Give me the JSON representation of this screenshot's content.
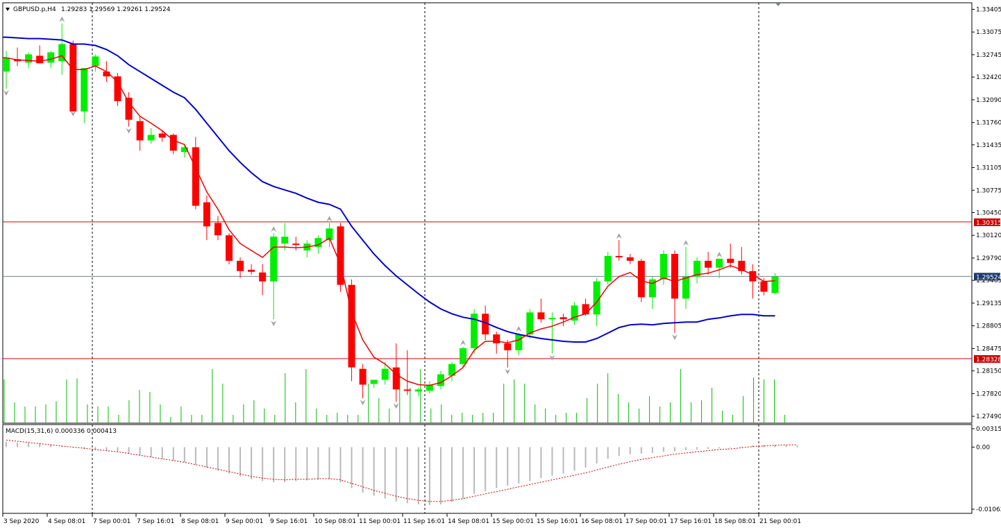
{
  "chart_data": [
    {
      "type": "candlestick",
      "title": "GBPUSD.p,H4",
      "ohlc_header": "1.29283 1.29569 1.29261 1.29524",
      "ylim": [
        1.2739,
        1.335
      ],
      "colors": {
        "up": "#00ee00",
        "down": "#ff0000",
        "ma_fast": "#ee0000",
        "ma_slow": "#0000cc",
        "level": "#cc0000",
        "grid": "#000000",
        "volume": "#00bb00"
      },
      "price_ticks": [
        "1.33405",
        "1.33075",
        "1.32745",
        "1.32420",
        "1.32090",
        "1.31760",
        "1.31435",
        "1.31105",
        "1.30775",
        "1.30450",
        "1.30120",
        "1.29790",
        "1.29465",
        "1.29135",
        "1.28805",
        "1.28475",
        "1.28150",
        "1.27820",
        "1.27490"
      ],
      "price_tick_values": [
        1.33405,
        1.33075,
        1.32745,
        1.3242,
        1.3209,
        1.3176,
        1.31435,
        1.31105,
        1.30775,
        1.3045,
        1.3012,
        1.2979,
        1.29465,
        1.29135,
        1.28805,
        1.28475,
        1.2815,
        1.2782,
        1.2749
      ],
      "current_price": {
        "label": "1.29524",
        "value": 1.29524
      },
      "levels": [
        {
          "label": "1.30315",
          "value": 1.30315
        },
        {
          "label": "1.28328",
          "value": 1.28328
        }
      ],
      "time_labels": [
        "3 Sep 2020",
        "4 Sep 08:01",
        "7 Sep 00:01",
        "7 Sep 16:01",
        "8 Sep 08:01",
        "9 Sep 00:01",
        "9 Sep 16:01",
        "10 Sep 08:01",
        "11 Sep 00:01",
        "11 Sep 16:01",
        "14 Sep 08:01",
        "15 Sep 00:01",
        "15 Sep 16:01",
        "16 Sep 08:01",
        "17 Sep 00:01",
        "17 Sep 16:01",
        "18 Sep 08:01",
        "21 Sep 00:01"
      ],
      "candles": [
        {
          "o": 1.325,
          "h": 1.328,
          "l": 1.3225,
          "c": 1.327
        },
        {
          "o": 1.3268,
          "h": 1.3285,
          "l": 1.3258,
          "c": 1.3265
        },
        {
          "o": 1.3263,
          "h": 1.3278,
          "l": 1.3255,
          "c": 1.3275
        },
        {
          "o": 1.3273,
          "h": 1.3288,
          "l": 1.3262,
          "c": 1.3262
        },
        {
          "o": 1.3263,
          "h": 1.328,
          "l": 1.3255,
          "c": 1.3278
        },
        {
          "o": 1.3265,
          "h": 1.332,
          "l": 1.3245,
          "c": 1.329
        },
        {
          "o": 1.329,
          "h": 1.3295,
          "l": 1.3195,
          "c": 1.3192
        },
        {
          "o": 1.3192,
          "h": 1.3255,
          "l": 1.3175,
          "c": 1.3255
        },
        {
          "o": 1.3258,
          "h": 1.3275,
          "l": 1.325,
          "c": 1.3272
        },
        {
          "o": 1.325,
          "h": 1.3265,
          "l": 1.3235,
          "c": 1.3243
        },
        {
          "o": 1.3243,
          "h": 1.3248,
          "l": 1.32,
          "c": 1.3207
        },
        {
          "o": 1.3212,
          "h": 1.322,
          "l": 1.317,
          "c": 1.318
        },
        {
          "o": 1.3178,
          "h": 1.3185,
          "l": 1.3135,
          "c": 1.315
        },
        {
          "o": 1.315,
          "h": 1.3168,
          "l": 1.3145,
          "c": 1.3158
        },
        {
          "o": 1.316,
          "h": 1.3165,
          "l": 1.3148,
          "c": 1.3154
        },
        {
          "o": 1.3158,
          "h": 1.316,
          "l": 1.313,
          "c": 1.3135
        },
        {
          "o": 1.3133,
          "h": 1.3145,
          "l": 1.3125,
          "c": 1.314
        },
        {
          "o": 1.314,
          "h": 1.3155,
          "l": 1.305,
          "c": 1.3055
        },
        {
          "o": 1.306,
          "h": 1.307,
          "l": 1.3005,
          "c": 1.3025
        },
        {
          "o": 1.303,
          "h": 1.304,
          "l": 1.3005,
          "c": 1.3012
        },
        {
          "o": 1.3012,
          "h": 1.3015,
          "l": 1.297,
          "c": 1.2975
        },
        {
          "o": 1.2975,
          "h": 1.298,
          "l": 1.295,
          "c": 1.296
        },
        {
          "o": 1.2962,
          "h": 1.297,
          "l": 1.2955,
          "c": 1.2959
        },
        {
          "o": 1.2958,
          "h": 1.297,
          "l": 1.2925,
          "c": 1.2945
        },
        {
          "o": 1.2945,
          "h": 1.3015,
          "l": 1.289,
          "c": 1.301
        },
        {
          "o": 1.3,
          "h": 1.303,
          "l": 1.299,
          "c": 1.301
        },
        {
          "o": 1.3,
          "h": 1.301,
          "l": 1.299,
          "c": 1.2998
        },
        {
          "o": 1.299,
          "h": 1.3005,
          "l": 1.298,
          "c": 1.3
        },
        {
          "o": 1.2995,
          "h": 1.3012,
          "l": 1.2985,
          "c": 1.3008
        },
        {
          "o": 1.3005,
          "h": 1.303,
          "l": 1.2995,
          "c": 1.3022
        },
        {
          "o": 1.3025,
          "h": 1.303,
          "l": 1.293,
          "c": 1.294
        },
        {
          "o": 1.294,
          "h": 1.2948,
          "l": 1.28,
          "c": 1.282
        },
        {
          "o": 1.2818,
          "h": 1.2825,
          "l": 1.2775,
          "c": 1.2795
        },
        {
          "o": 1.2796,
          "h": 1.2802,
          "l": 1.279,
          "c": 1.2802
        },
        {
          "o": 1.2802,
          "h": 1.2828,
          "l": 1.2795,
          "c": 1.2818
        },
        {
          "o": 1.282,
          "h": 1.2855,
          "l": 1.277,
          "c": 1.2788
        },
        {
          "o": 1.2788,
          "h": 1.2845,
          "l": 1.278,
          "c": 1.2786
        },
        {
          "o": 1.2785,
          "h": 1.279,
          "l": 1.2778,
          "c": 1.2788
        },
        {
          "o": 1.2786,
          "h": 1.28,
          "l": 1.2782,
          "c": 1.2795
        },
        {
          "o": 1.2793,
          "h": 1.2815,
          "l": 1.2788,
          "c": 1.281
        },
        {
          "o": 1.2808,
          "h": 1.2828,
          "l": 1.28,
          "c": 1.2825
        },
        {
          "o": 1.2825,
          "h": 1.285,
          "l": 1.282,
          "c": 1.2848
        },
        {
          "o": 1.2848,
          "h": 1.2905,
          "l": 1.284,
          "c": 1.2898
        },
        {
          "o": 1.2898,
          "h": 1.291,
          "l": 1.286,
          "c": 1.2868
        },
        {
          "o": 1.2868,
          "h": 1.2872,
          "l": 1.284,
          "c": 1.2855
        },
        {
          "o": 1.2855,
          "h": 1.286,
          "l": 1.282,
          "c": 1.2845
        },
        {
          "o": 1.2845,
          "h": 1.287,
          "l": 1.2838,
          "c": 1.2868
        },
        {
          "o": 1.2868,
          "h": 1.2905,
          "l": 1.2862,
          "c": 1.29
        },
        {
          "o": 1.29,
          "h": 1.292,
          "l": 1.2885,
          "c": 1.289
        },
        {
          "o": 1.289,
          "h": 1.29,
          "l": 1.284,
          "c": 1.2892
        },
        {
          "o": 1.2893,
          "h": 1.2898,
          "l": 1.288,
          "c": 1.289
        },
        {
          "o": 1.2888,
          "h": 1.2915,
          "l": 1.2882,
          "c": 1.291
        },
        {
          "o": 1.2912,
          "h": 1.292,
          "l": 1.2895,
          "c": 1.2897
        },
        {
          "o": 1.2897,
          "h": 1.295,
          "l": 1.288,
          "c": 1.2945
        },
        {
          "o": 1.2945,
          "h": 1.2988,
          "l": 1.294,
          "c": 1.2982
        },
        {
          "o": 1.2982,
          "h": 1.3005,
          "l": 1.2975,
          "c": 1.298
        },
        {
          "o": 1.298,
          "h": 1.2985,
          "l": 1.297,
          "c": 1.2975
        },
        {
          "o": 1.2975,
          "h": 1.2978,
          "l": 1.2915,
          "c": 1.2922
        },
        {
          "o": 1.2922,
          "h": 1.2952,
          "l": 1.2905,
          "c": 1.2948
        },
        {
          "o": 1.2948,
          "h": 1.299,
          "l": 1.294,
          "c": 1.2985
        },
        {
          "o": 1.2985,
          "h": 1.299,
          "l": 1.287,
          "c": 1.292
        },
        {
          "o": 1.292,
          "h": 1.2995,
          "l": 1.2905,
          "c": 1.2952
        },
        {
          "o": 1.2952,
          "h": 1.298,
          "l": 1.2942,
          "c": 1.2975
        },
        {
          "o": 1.2975,
          "h": 1.2988,
          "l": 1.2955,
          "c": 1.2965
        },
        {
          "o": 1.2965,
          "h": 1.2978,
          "l": 1.295,
          "c": 1.2978
        },
        {
          "o": 1.2978,
          "h": 1.3,
          "l": 1.2965,
          "c": 1.2972
        },
        {
          "o": 1.2975,
          "h": 1.2995,
          "l": 1.2955,
          "c": 1.296
        },
        {
          "o": 1.296,
          "h": 1.297,
          "l": 1.292,
          "c": 1.2945
        },
        {
          "o": 1.2945,
          "h": 1.295,
          "l": 1.2925,
          "c": 1.293
        },
        {
          "o": 1.2928,
          "h": 1.2957,
          "l": 1.2926,
          "c": 1.2952
        }
      ],
      "ma_fast": [
        1.327,
        1.3267,
        1.3266,
        1.3265,
        1.3268,
        1.3273,
        1.3253,
        1.3253,
        1.3258,
        1.325,
        1.3235,
        1.3205,
        1.3185,
        1.3175,
        1.3164,
        1.315,
        1.3144,
        1.311,
        1.3075,
        1.305,
        1.302,
        1.3,
        1.299,
        1.298,
        1.2995,
        1.2995,
        1.2994,
        1.2995,
        1.2998,
        1.3008,
        1.297,
        1.29,
        1.286,
        1.2835,
        1.2825,
        1.281,
        1.28,
        1.2795,
        1.2794,
        1.2798,
        1.2808,
        1.282,
        1.2845,
        1.2858,
        1.2858,
        1.2856,
        1.286,
        1.287,
        1.2876,
        1.288,
        1.2886,
        1.2893,
        1.2898,
        1.2915,
        1.2938,
        1.2952,
        1.2958,
        1.2946,
        1.2942,
        1.295,
        1.2945,
        1.295,
        1.2955,
        1.2957,
        1.2962,
        1.2968,
        1.2962,
        1.2955,
        1.2945,
        1.2946
      ],
      "ma_slow": [
        1.33,
        1.3299,
        1.3298,
        1.3298,
        1.3297,
        1.3296,
        1.329,
        1.329,
        1.3288,
        1.3282,
        1.3273,
        1.326,
        1.325,
        1.324,
        1.323,
        1.322,
        1.3212,
        1.3195,
        1.3175,
        1.3155,
        1.3135,
        1.3118,
        1.3103,
        1.309,
        1.3083,
        1.3078,
        1.3073,
        1.3066,
        1.306,
        1.3057,
        1.305,
        1.3025,
        1.3005,
        1.2985,
        1.2968,
        1.2953,
        1.294,
        1.2927,
        1.2915,
        1.2905,
        1.2898,
        1.2893,
        1.289,
        1.2885,
        1.2878,
        1.2872,
        1.2868,
        1.2865,
        1.2862,
        1.286,
        1.2858,
        1.2857,
        1.2857,
        1.2862,
        1.287,
        1.2878,
        1.2882,
        1.2883,
        1.2882,
        1.2884,
        1.2885,
        1.2886,
        1.2886,
        1.289,
        1.2892,
        1.2895,
        1.2897,
        1.2897,
        1.2895,
        1.2895
      ],
      "fractals_up": [
        5,
        24,
        29,
        41,
        46,
        55,
        61,
        64
      ],
      "fractals_down": [
        0,
        6,
        11,
        24,
        32,
        35,
        45,
        49,
        60
      ],
      "volumes": [
        420,
        200,
        160,
        160,
        180,
        210,
        420,
        430,
        180,
        160,
        160,
        80,
        220,
        320,
        300,
        180,
        60,
        160,
        80,
        80,
        520,
        380,
        80,
        180,
        220,
        140,
        80,
        480,
        200,
        520,
        140,
        80,
        100,
        80,
        80,
        380,
        240,
        140,
        480,
        340,
        520,
        140,
        180,
        80,
        100,
        80,
        100,
        100,
        380,
        420,
        380,
        180,
        140,
        80,
        100,
        100,
        240,
        380,
        480,
        280,
        200,
        140,
        260,
        160,
        200,
        520,
        200,
        220,
        340,
        120,
        80,
        260,
        440,
        420,
        420,
        80
      ],
      "vol_max": 520,
      "macd": {
        "label": "MACD(15,31,6) 0.000336 0.000413",
        "ticks": [
          "0.00315",
          "0.00",
          "-0.01062"
        ],
        "tick_values": [
          0.00315,
          0,
          -0.01062
        ],
        "ylim": [
          -0.01062,
          0.00315
        ],
        "hist": [
          0.0009,
          0.0008,
          0.0007,
          0.0006,
          0.0004,
          0.0002,
          -0.0001,
          -0.0003,
          -0.0005,
          -0.0006,
          -0.0008,
          -0.0011,
          -0.0014,
          -0.0017,
          -0.002,
          -0.0023,
          -0.0026,
          -0.003,
          -0.0035,
          -0.004,
          -0.0045,
          -0.005,
          -0.0055,
          -0.0058,
          -0.006,
          -0.006,
          -0.0058,
          -0.0057,
          -0.0056,
          -0.0055,
          -0.006,
          -0.007,
          -0.0078,
          -0.0083,
          -0.0088,
          -0.0093,
          -0.0096,
          -0.0098,
          -0.0099,
          -0.0098,
          -0.0094,
          -0.0088,
          -0.008,
          -0.0075,
          -0.007,
          -0.0066,
          -0.0062,
          -0.0058,
          -0.0053,
          -0.0049,
          -0.0045,
          -0.004,
          -0.0035,
          -0.0028,
          -0.002,
          -0.0015,
          -0.0012,
          -0.0011,
          -0.001,
          -0.0008,
          -0.0007,
          -0.0005,
          -0.0004,
          -0.0003,
          -0.0002,
          -0.0001,
          0.0001,
          0.0003,
          0.0004,
          0.0004,
          0.0003,
          0.0003
        ],
        "signal": [
          0.0012,
          0.001,
          0.0008,
          0.0006,
          0.0004,
          0.0002,
          0.0,
          -0.0002,
          -0.0004,
          -0.0006,
          -0.0008,
          -0.0011,
          -0.0014,
          -0.0017,
          -0.002,
          -0.0023,
          -0.0026,
          -0.003,
          -0.0034,
          -0.0038,
          -0.0042,
          -0.0046,
          -0.005,
          -0.0053,
          -0.0055,
          -0.0056,
          -0.0055,
          -0.0055,
          -0.0054,
          -0.0054,
          -0.0056,
          -0.0062,
          -0.0068,
          -0.0074,
          -0.0079,
          -0.0084,
          -0.0088,
          -0.0091,
          -0.0093,
          -0.0093,
          -0.0091,
          -0.0088,
          -0.0084,
          -0.008,
          -0.0076,
          -0.0072,
          -0.0068,
          -0.0064,
          -0.006,
          -0.0056,
          -0.0052,
          -0.0048,
          -0.0044,
          -0.0039,
          -0.0034,
          -0.0029,
          -0.0025,
          -0.0021,
          -0.0018,
          -0.0015,
          -0.0012,
          -0.001,
          -0.0008,
          -0.0006,
          -0.0004,
          -0.0003,
          -0.0001,
          0.0001,
          0.0002,
          0.0003,
          0.0004,
          0.0004
        ]
      }
    }
  ]
}
